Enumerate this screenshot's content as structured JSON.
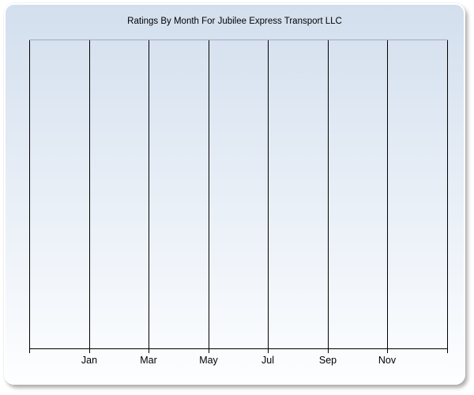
{
  "chart_data": {
    "type": "line",
    "title": "Ratings By Month For Jubilee Express Transport LLC",
    "xlabel": "",
    "ylabel": "",
    "x_tick_labels": [
      "Jan",
      "Mar",
      "May",
      "Jul",
      "Sep",
      "Nov"
    ],
    "x_gridline_count": 8,
    "series": [],
    "grid": "vertical-only",
    "legend": "none"
  },
  "colors": {
    "page_background": "#ffffff",
    "card_gradient_top": "#d3dfee",
    "card_gradient_bottom": "#fdfeff",
    "card_border": "#ffffff",
    "plot_top_border": "#a2aaba",
    "gridline": "#000000",
    "axis_line": "#000000",
    "title_text": "#000000",
    "axis_label_text": "#000000"
  }
}
